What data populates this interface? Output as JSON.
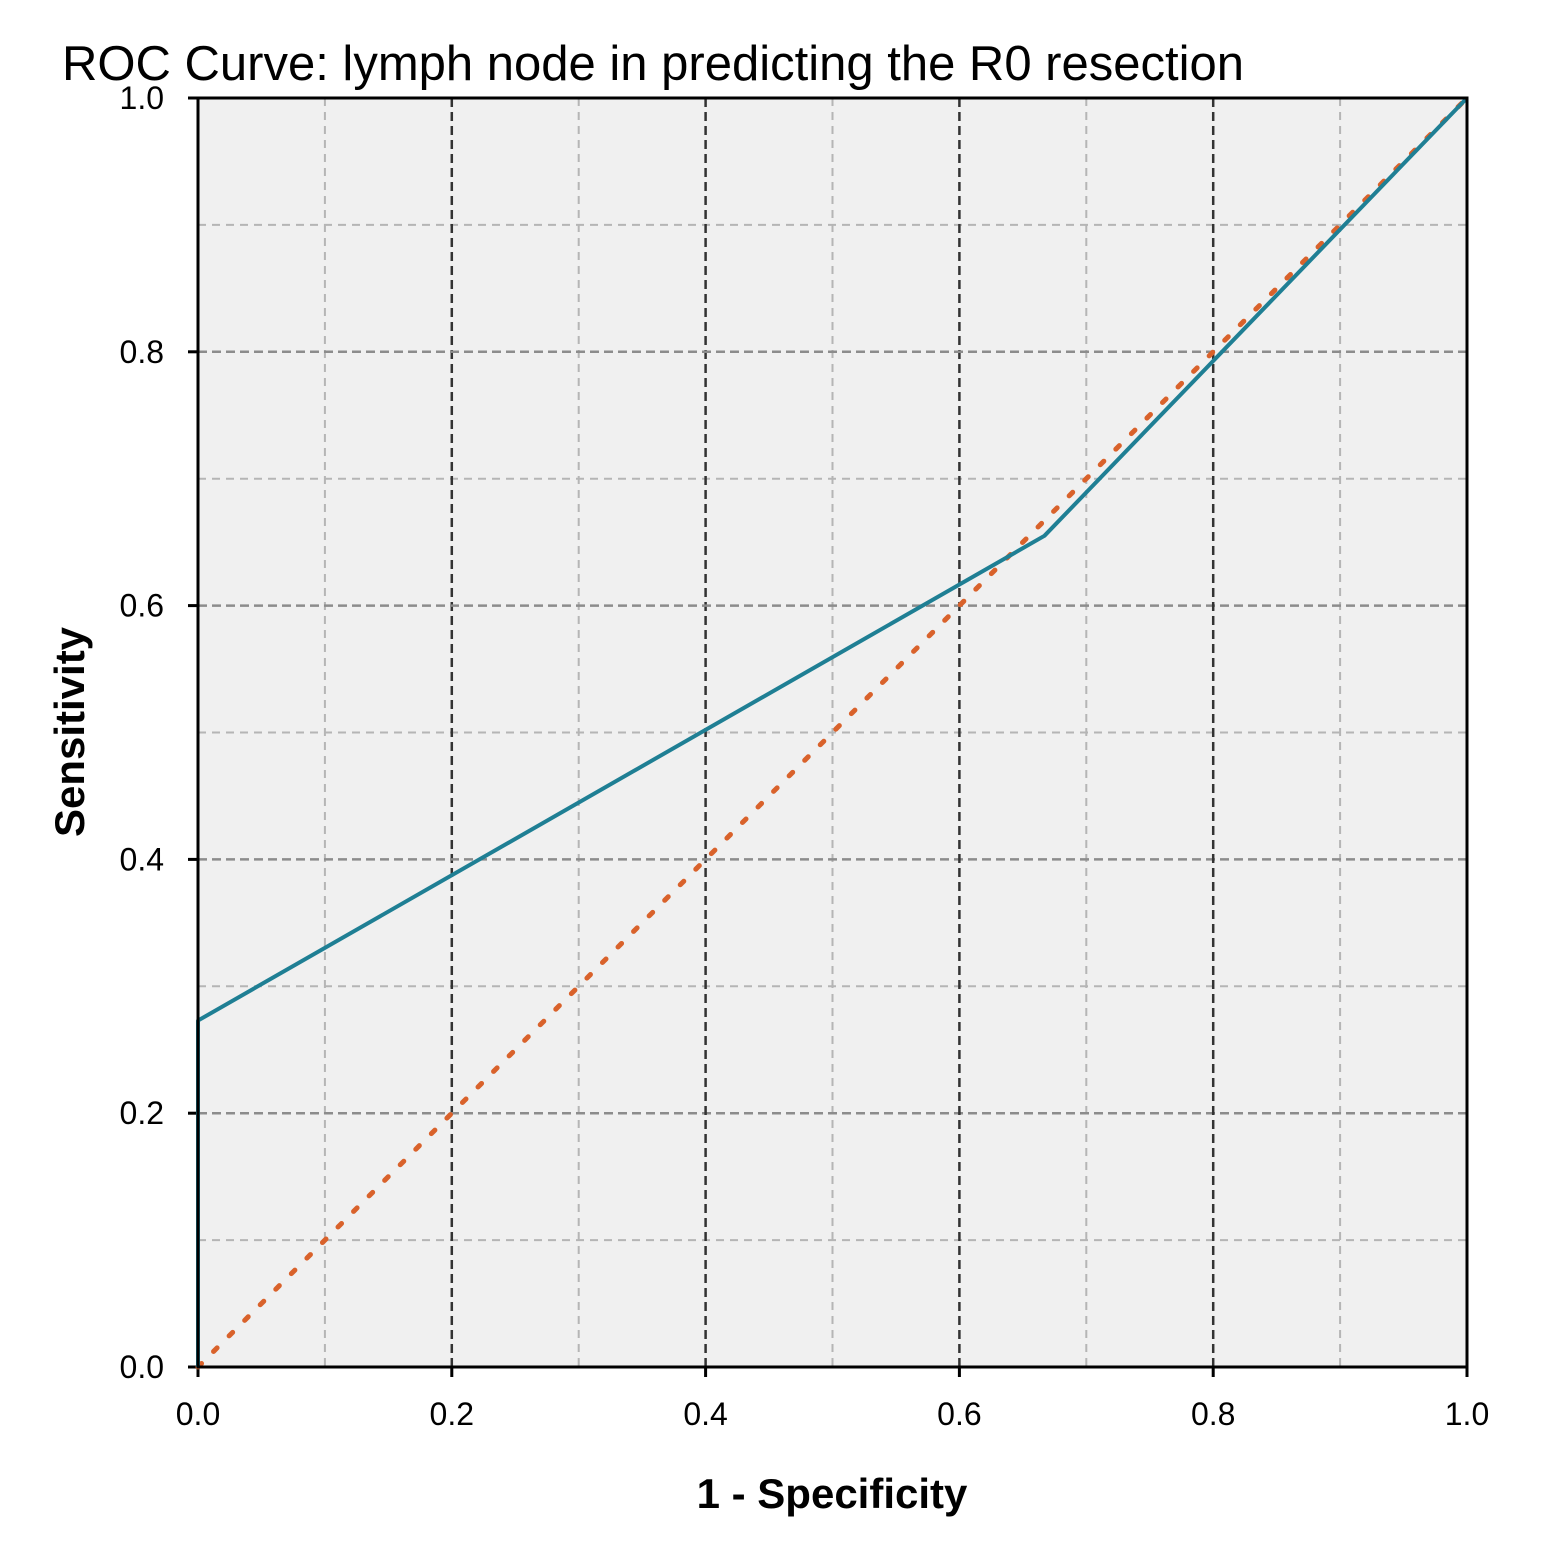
{
  "chart_data": {
    "type": "line",
    "title": "ROC Curve: lymph node in predicting the R0 resection",
    "xlabel": "1 - Specificity",
    "ylabel": "Sensitivity",
    "xlim": [
      0,
      1
    ],
    "ylim": [
      0,
      1
    ],
    "x_ticks": [
      "0.0",
      "0.2",
      "0.4",
      "0.6",
      "0.8",
      "1.0"
    ],
    "y_ticks": [
      "0.0",
      "0.2",
      "0.4",
      "0.6",
      "0.8",
      "1.0"
    ],
    "x_tick_values": [
      0,
      0.2,
      0.4,
      0.6,
      0.8,
      1.0
    ],
    "y_tick_values": [
      0,
      0.2,
      0.4,
      0.6,
      0.8,
      1.0
    ],
    "major_grid": [
      0.2,
      0.4,
      0.6,
      0.8
    ],
    "minor_grid": [
      0.1,
      0.3,
      0.5,
      0.7,
      0.9
    ],
    "grid": true,
    "series": [
      {
        "name": "ROC curve",
        "style": "solid",
        "color": "#1f7f94",
        "x": [
          0,
          0,
          0.667,
          1.0
        ],
        "y": [
          0,
          0.273,
          0.655,
          1.0
        ]
      },
      {
        "name": "Reference line",
        "style": "dotted",
        "color": "#d9622b",
        "x": [
          0,
          1
        ],
        "y": [
          0,
          1
        ]
      }
    ]
  },
  "colors": {
    "plot_background": "#f0f0f0",
    "axis": "#000000",
    "major_grid": "#333333",
    "minor_grid": "#b5b5b5"
  }
}
